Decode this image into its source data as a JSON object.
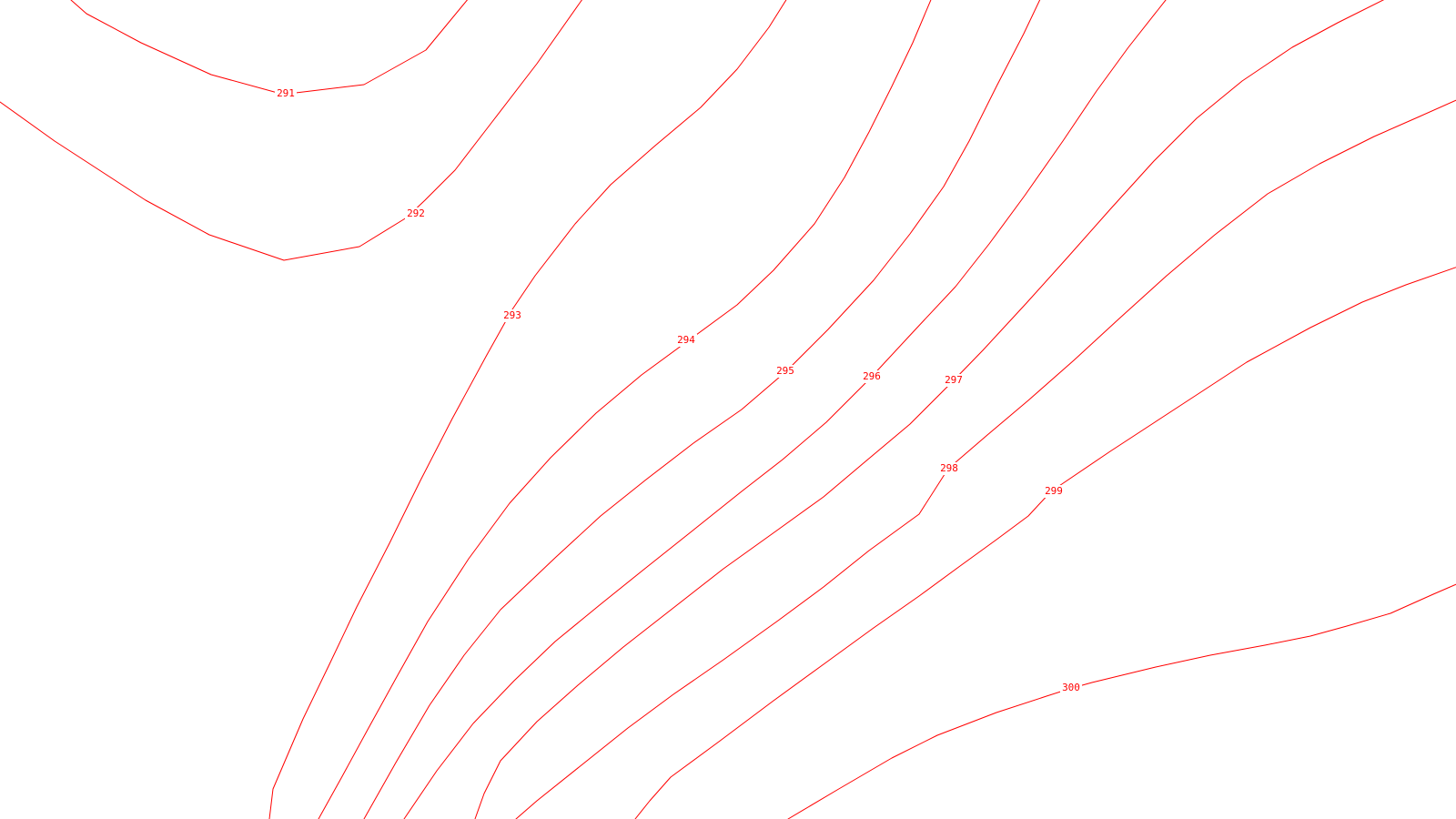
{
  "map": {
    "background_color": "#ffffff",
    "contour_color": "#ff0000",
    "contours": [
      {
        "level": "291"
      },
      {
        "level": "292"
      },
      {
        "level": "293"
      },
      {
        "level": "294"
      },
      {
        "level": "295"
      },
      {
        "level": "296"
      },
      {
        "level": "297"
      },
      {
        "level": "298"
      },
      {
        "level": "299"
      },
      {
        "level": "300"
      }
    ]
  }
}
